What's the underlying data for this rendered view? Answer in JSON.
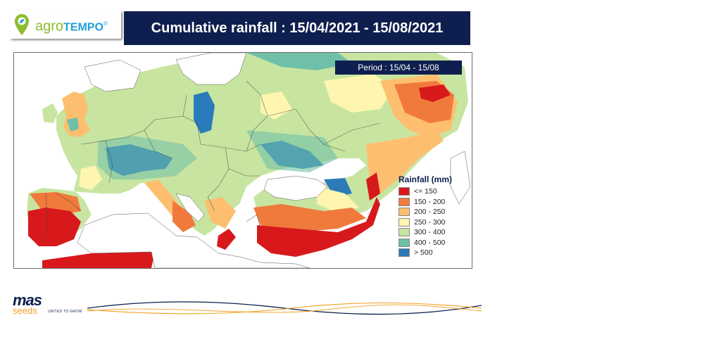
{
  "brand": {
    "agro": "agro",
    "tempo": "TEMPO",
    "registered": "®"
  },
  "title": "Cumulative rainfall : 15/04/2021 - 15/08/2021",
  "period": "Period : 15/04 - 15/08",
  "legend": {
    "title": "Rainfall (mm)",
    "items": [
      {
        "label": "<= 150",
        "color": "#d7191c"
      },
      {
        "label": "150 - 200",
        "color": "#f07a3c"
      },
      {
        "label": "200 - 250",
        "color": "#fdbf6f"
      },
      {
        "label": "250 - 300",
        "color": "#fdf5b0"
      },
      {
        "label": "300 - 400",
        "color": "#c7e5a0"
      },
      {
        "label": "400 - 500",
        "color": "#6fc0a8"
      },
      {
        "label": "> 500",
        "color": "#2b7bba"
      }
    ]
  },
  "footer": {
    "mas": "mas",
    "seeds": "seeds",
    "tagline": "UNITED TO GROW"
  },
  "colors": {
    "navy": "#0e1e4e",
    "orange": "#f0a020",
    "sea": "#ffffff"
  }
}
